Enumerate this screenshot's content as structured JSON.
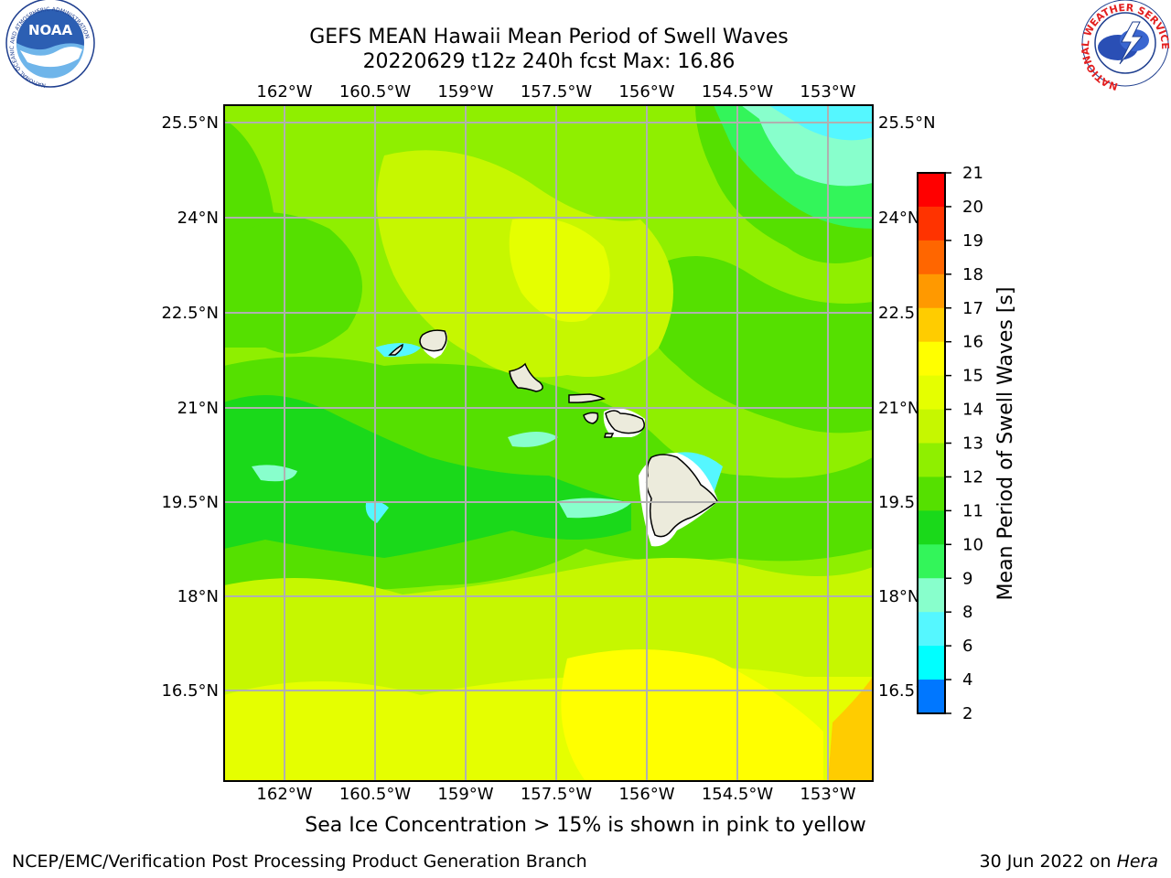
{
  "header": {
    "title_line1": "GEFS MEAN Hawaii Mean Period of Swell Waves",
    "title_line2": "20220629 t12z 240h fcst   Max: 16.86"
  },
  "logos": {
    "left": {
      "text": "NOAA",
      "ring_text": "NATIONAL OCEANIC AND ATMOSPHERIC ADMINISTRATION",
      "bottom_text": "U.S. DEPARTMENT OF COMMERCE"
    },
    "right": {
      "ring_text": "NATIONAL WEATHER SERVICE"
    }
  },
  "map": {
    "lon_labels": [
      "162°W",
      "160.5°W",
      "159°W",
      "157.5°W",
      "156°W",
      "154.5°W",
      "153°W"
    ],
    "lat_labels": [
      "25.5°N",
      "24°N",
      "22.5°N",
      "21°N",
      "19.5°N",
      "18°N",
      "16.5°N"
    ],
    "colors": {
      "ocean_base": "#8fef00",
      "land": "#ecebdc",
      "grid": "#b0b0b0"
    }
  },
  "colorbar": {
    "label": "Mean Period of Swell Waves [s]",
    "ticks": [
      "21",
      "20",
      "19",
      "18",
      "17",
      "16",
      "15",
      "14",
      "13",
      "12",
      "11",
      "10",
      "9",
      "8",
      "6",
      "4",
      "2"
    ],
    "colors": [
      "#ff0000",
      "#ff3300",
      "#ff6600",
      "#ff9900",
      "#ffcc00",
      "#ffff00",
      "#e5ff00",
      "#c6f700",
      "#8fef00",
      "#55e000",
      "#1ad91a",
      "#33f55a",
      "#88ffcc",
      "#55f7ff",
      "#00ffff",
      "#0077ff",
      "#0000ff"
    ]
  },
  "footer": {
    "caption": "Sea Ice Concentration > 15% is shown in pink to yellow",
    "credit": "NCEP/EMC/Verification Post Processing Product Generation Branch",
    "date": "30 Jun 2022 on",
    "host": "Hera"
  }
}
